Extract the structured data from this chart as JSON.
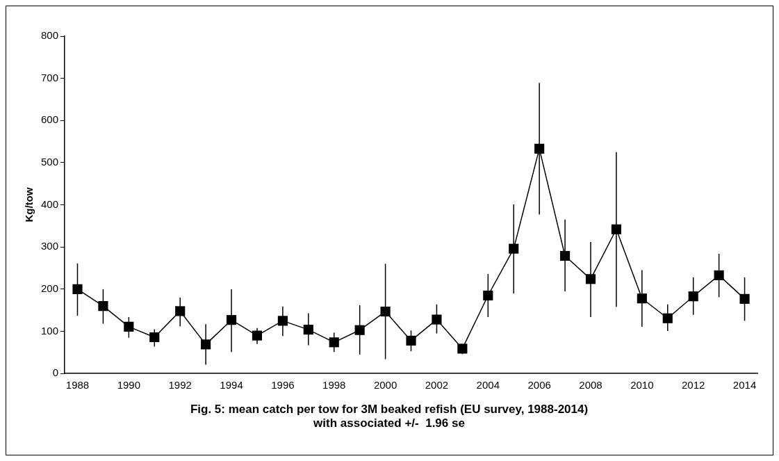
{
  "chart_data": {
    "type": "line",
    "title": "Fig. 5: mean catch per tow for 3M beaked refish (EU survey, 1988-2014)\nwith associated +/-  1.96 se",
    "ylabel": "Kg/tow",
    "categories": [
      "1988",
      null,
      "1990",
      null,
      "1992",
      null,
      "1994",
      null,
      "1996",
      null,
      "1998",
      null,
      "2000",
      null,
      "2002",
      null,
      "2004",
      null,
      "2006",
      null,
      "2008",
      null,
      "2010",
      null,
      "2012",
      null,
      "2014"
    ],
    "series": [
      {
        "color": "#000000",
        "values": [
          200,
          160,
          111,
          86,
          148,
          69,
          127,
          90,
          125,
          104,
          74,
          103,
          147,
          78,
          128,
          59,
          185,
          296,
          533,
          279,
          224,
          342,
          178,
          131,
          183,
          233,
          177
        ],
        "errors": [
          [
            137,
            261
          ],
          [
            118,
            200
          ],
          [
            85,
            134
          ],
          [
            64,
            105
          ],
          [
            112,
            180
          ],
          [
            21,
            117
          ],
          [
            51,
            200
          ],
          [
            70,
            108
          ],
          [
            89,
            159
          ],
          [
            67,
            143
          ],
          [
            51,
            97
          ],
          [
            45,
            162
          ],
          [
            34,
            260
          ],
          [
            53,
            102
          ],
          [
            95,
            164
          ],
          [
            46,
            62
          ],
          [
            134,
            236
          ],
          [
            190,
            401
          ],
          [
            377,
            689
          ],
          [
            195,
            365
          ],
          [
            134,
            312
          ],
          [
            158,
            525
          ],
          [
            111,
            245
          ],
          [
            101,
            164
          ],
          [
            139,
            228
          ],
          [
            181,
            284
          ],
          [
            125,
            228
          ]
        ]
      }
    ],
    "ylim": [
      0,
      800
    ],
    "yticks": [
      0,
      100,
      200,
      300,
      400,
      500,
      600,
      700,
      800
    ],
    "grid": false,
    "legend": false,
    "marker": "square",
    "line_style": "solid"
  }
}
